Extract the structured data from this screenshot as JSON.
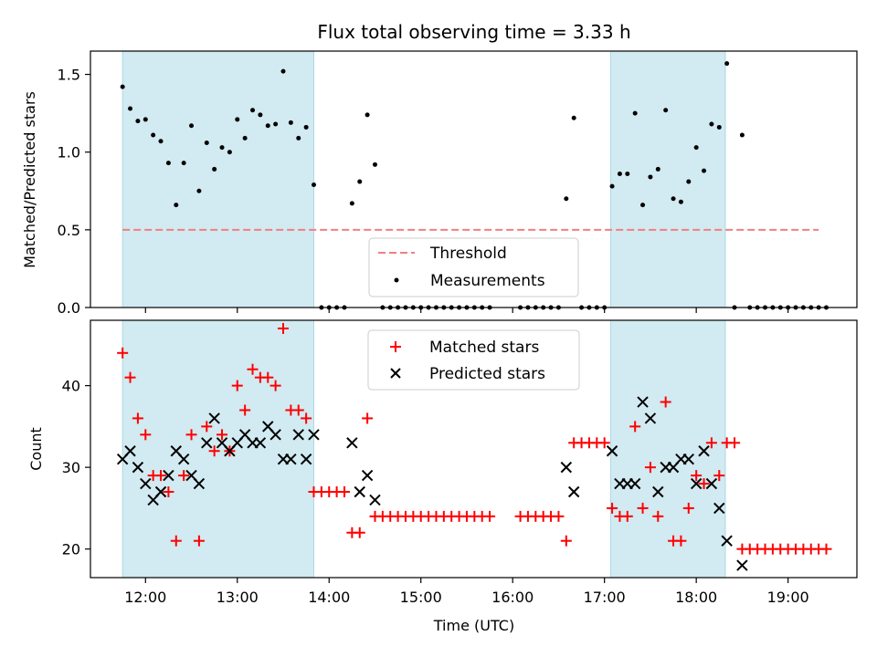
{
  "chart_data": {
    "type": "scatter",
    "title": "Flux total observing time = 3.33 h",
    "xlabel": "Time (UTC)",
    "xlim": [
      "11:24",
      "19:45"
    ],
    "xticks": [
      "12:00",
      "13:00",
      "14:00",
      "15:00",
      "16:00",
      "17:00",
      "18:00",
      "19:00"
    ],
    "shaded_intervals": [
      [
        "11:45",
        "13:50"
      ],
      [
        "17:04",
        "18:19"
      ]
    ],
    "shade_color": "#add8e6",
    "top": {
      "ylabel": "Matched/Predicted stars",
      "ylim": [
        0,
        1.65
      ],
      "yticks": [
        "0.0",
        "0.5",
        "1.0",
        "1.5"
      ],
      "threshold": {
        "name": "Threshold",
        "value": 0.5,
        "range": [
          "11:45",
          "19:20"
        ],
        "color": "#f08080"
      },
      "series": [
        {
          "name": "Measurements",
          "color": "#000000",
          "points": [
            [
              "11:45",
              1.42
            ],
            [
              "11:50",
              1.28
            ],
            [
              "11:55",
              1.2
            ],
            [
              "12:00",
              1.21
            ],
            [
              "12:05",
              1.11
            ],
            [
              "12:10",
              1.07
            ],
            [
              "12:15",
              0.93
            ],
            [
              "12:20",
              0.66
            ],
            [
              "12:25",
              0.93
            ],
            [
              "12:30",
              1.17
            ],
            [
              "12:35",
              0.75
            ],
            [
              "12:40",
              1.06
            ],
            [
              "12:45",
              0.89
            ],
            [
              "12:50",
              1.03
            ],
            [
              "12:55",
              1.0
            ],
            [
              "13:00",
              1.21
            ],
            [
              "13:05",
              1.09
            ],
            [
              "13:10",
              1.27
            ],
            [
              "13:15",
              1.24
            ],
            [
              "13:20",
              1.17
            ],
            [
              "13:25",
              1.18
            ],
            [
              "13:30",
              1.52
            ],
            [
              "13:35",
              1.19
            ],
            [
              "13:40",
              1.09
            ],
            [
              "13:45",
              1.16
            ],
            [
              "13:50",
              0.79
            ],
            [
              "13:55",
              0.0
            ],
            [
              "14:00",
              0.0
            ],
            [
              "14:05",
              0.0
            ],
            [
              "14:10",
              0.0
            ],
            [
              "14:15",
              0.67
            ],
            [
              "14:20",
              0.81
            ],
            [
              "14:25",
              1.24
            ],
            [
              "14:30",
              0.92
            ],
            [
              "14:35",
              0.0
            ],
            [
              "14:40",
              0.0
            ],
            [
              "14:45",
              0.0
            ],
            [
              "14:50",
              0.0
            ],
            [
              "14:55",
              0.0
            ],
            [
              "15:00",
              0.0
            ],
            [
              "15:05",
              0.0
            ],
            [
              "15:10",
              0.0
            ],
            [
              "15:15",
              0.0
            ],
            [
              "15:20",
              0.0
            ],
            [
              "15:25",
              0.0
            ],
            [
              "15:30",
              0.0
            ],
            [
              "15:35",
              0.0
            ],
            [
              "15:40",
              0.0
            ],
            [
              "15:45",
              0.0
            ],
            [
              "16:05",
              0.0
            ],
            [
              "16:10",
              0.0
            ],
            [
              "16:15",
              0.0
            ],
            [
              "16:20",
              0.0
            ],
            [
              "16:25",
              0.0
            ],
            [
              "16:30",
              0.0
            ],
            [
              "16:35",
              0.7
            ],
            [
              "16:40",
              1.22
            ],
            [
              "16:45",
              0.0
            ],
            [
              "16:50",
              0.0
            ],
            [
              "16:55",
              0.0
            ],
            [
              "17:00",
              0.0
            ],
            [
              "17:05",
              0.78
            ],
            [
              "17:10",
              0.86
            ],
            [
              "17:15",
              0.86
            ],
            [
              "17:20",
              1.25
            ],
            [
              "17:25",
              0.66
            ],
            [
              "17:30",
              0.84
            ],
            [
              "17:35",
              0.89
            ],
            [
              "17:40",
              1.27
            ],
            [
              "17:45",
              0.7
            ],
            [
              "17:50",
              0.68
            ],
            [
              "17:55",
              0.81
            ],
            [
              "18:00",
              1.03
            ],
            [
              "18:05",
              0.88
            ],
            [
              "18:10",
              1.18
            ],
            [
              "18:15",
              1.16
            ],
            [
              "18:20",
              1.57
            ],
            [
              "18:25",
              0.0
            ],
            [
              "18:30",
              1.11
            ],
            [
              "18:35",
              0.0
            ],
            [
              "18:40",
              0.0
            ],
            [
              "18:45",
              0.0
            ],
            [
              "18:50",
              0.0
            ],
            [
              "18:55",
              0.0
            ],
            [
              "19:00",
              0.0
            ],
            [
              "19:05",
              0.0
            ],
            [
              "19:10",
              0.0
            ],
            [
              "19:15",
              0.0
            ],
            [
              "19:20",
              0.0
            ],
            [
              "19:25",
              0.0
            ]
          ]
        }
      ],
      "legend_position": "lower-center"
    },
    "bottom": {
      "ylabel": "Count",
      "ylim": [
        16.5,
        48
      ],
      "yticks": [
        "20",
        "30",
        "40"
      ],
      "series": [
        {
          "name": "Matched stars",
          "marker": "plus",
          "color": "#ff0000",
          "points": [
            [
              "11:45",
              44
            ],
            [
              "11:50",
              41
            ],
            [
              "11:55",
              36
            ],
            [
              "12:00",
              34
            ],
            [
              "12:05",
              29
            ],
            [
              "12:10",
              29
            ],
            [
              "12:15",
              27
            ],
            [
              "12:20",
              21
            ],
            [
              "12:25",
              29
            ],
            [
              "12:30",
              34
            ],
            [
              "12:35",
              21
            ],
            [
              "12:40",
              35
            ],
            [
              "12:45",
              32
            ],
            [
              "12:50",
              34
            ],
            [
              "12:55",
              32
            ],
            [
              "13:00",
              40
            ],
            [
              "13:05",
              37
            ],
            [
              "13:10",
              42
            ],
            [
              "13:15",
              41
            ],
            [
              "13:20",
              41
            ],
            [
              "13:25",
              40
            ],
            [
              "13:30",
              47
            ],
            [
              "13:35",
              37
            ],
            [
              "13:40",
              37
            ],
            [
              "13:45",
              36
            ],
            [
              "13:50",
              27
            ],
            [
              "13:55",
              27
            ],
            [
              "14:00",
              27
            ],
            [
              "14:05",
              27
            ],
            [
              "14:10",
              27
            ],
            [
              "14:15",
              22
            ],
            [
              "14:20",
              22
            ],
            [
              "14:25",
              36
            ],
            [
              "14:30",
              24
            ],
            [
              "14:35",
              24
            ],
            [
              "14:40",
              24
            ],
            [
              "14:45",
              24
            ],
            [
              "14:50",
              24
            ],
            [
              "14:55",
              24
            ],
            [
              "15:00",
              24
            ],
            [
              "15:05",
              24
            ],
            [
              "15:10",
              24
            ],
            [
              "15:15",
              24
            ],
            [
              "15:20",
              24
            ],
            [
              "15:25",
              24
            ],
            [
              "15:30",
              24
            ],
            [
              "15:35",
              24
            ],
            [
              "15:40",
              24
            ],
            [
              "15:45",
              24
            ],
            [
              "16:05",
              24
            ],
            [
              "16:10",
              24
            ],
            [
              "16:15",
              24
            ],
            [
              "16:20",
              24
            ],
            [
              "16:25",
              24
            ],
            [
              "16:30",
              24
            ],
            [
              "16:35",
              21
            ],
            [
              "16:40",
              33
            ],
            [
              "16:45",
              33
            ],
            [
              "16:50",
              33
            ],
            [
              "16:55",
              33
            ],
            [
              "17:00",
              33
            ],
            [
              "17:05",
              25
            ],
            [
              "17:10",
              24
            ],
            [
              "17:15",
              24
            ],
            [
              "17:20",
              35
            ],
            [
              "17:25",
              25
            ],
            [
              "17:30",
              30
            ],
            [
              "17:35",
              24
            ],
            [
              "17:40",
              38
            ],
            [
              "17:45",
              21
            ],
            [
              "17:50",
              21
            ],
            [
              "17:55",
              25
            ],
            [
              "18:00",
              29
            ],
            [
              "18:05",
              28
            ],
            [
              "18:10",
              33
            ],
            [
              "18:15",
              29
            ],
            [
              "18:20",
              33
            ],
            [
              "18:25",
              33
            ],
            [
              "18:30",
              20
            ],
            [
              "18:35",
              20
            ],
            [
              "18:40",
              20
            ],
            [
              "18:45",
              20
            ],
            [
              "18:50",
              20
            ],
            [
              "18:55",
              20
            ],
            [
              "19:00",
              20
            ],
            [
              "19:05",
              20
            ],
            [
              "19:10",
              20
            ],
            [
              "19:15",
              20
            ],
            [
              "19:20",
              20
            ],
            [
              "19:25",
              20
            ]
          ]
        },
        {
          "name": "Predicted stars",
          "marker": "x",
          "color": "#000000",
          "points": [
            [
              "11:45",
              31
            ],
            [
              "11:50",
              32
            ],
            [
              "11:55",
              30
            ],
            [
              "12:00",
              28
            ],
            [
              "12:05",
              26
            ],
            [
              "12:10",
              27
            ],
            [
              "12:15",
              29
            ],
            [
              "12:20",
              32
            ],
            [
              "12:25",
              31
            ],
            [
              "12:30",
              29
            ],
            [
              "12:35",
              28
            ],
            [
              "12:40",
              33
            ],
            [
              "12:45",
              36
            ],
            [
              "12:50",
              33
            ],
            [
              "12:55",
              32
            ],
            [
              "13:00",
              33
            ],
            [
              "13:05",
              34
            ],
            [
              "13:10",
              33
            ],
            [
              "13:15",
              33
            ],
            [
              "13:20",
              35
            ],
            [
              "13:25",
              34
            ],
            [
              "13:30",
              31
            ],
            [
              "13:35",
              31
            ],
            [
              "13:40",
              34
            ],
            [
              "13:45",
              31
            ],
            [
              "13:50",
              34
            ],
            [
              "14:15",
              33
            ],
            [
              "14:20",
              27
            ],
            [
              "14:25",
              29
            ],
            [
              "14:30",
              26
            ],
            [
              "16:35",
              30
            ],
            [
              "16:40",
              27
            ],
            [
              "17:05",
              32
            ],
            [
              "17:10",
              28
            ],
            [
              "17:15",
              28
            ],
            [
              "17:20",
              28
            ],
            [
              "17:25",
              38
            ],
            [
              "17:30",
              36
            ],
            [
              "17:35",
              27
            ],
            [
              "17:40",
              30
            ],
            [
              "17:45",
              30
            ],
            [
              "17:50",
              31
            ],
            [
              "17:55",
              31
            ],
            [
              "18:00",
              28
            ],
            [
              "18:05",
              32
            ],
            [
              "18:10",
              28
            ],
            [
              "18:15",
              25
            ],
            [
              "18:20",
              21
            ],
            [
              "18:30",
              18
            ]
          ]
        }
      ],
      "legend_position": "upper-center"
    }
  }
}
